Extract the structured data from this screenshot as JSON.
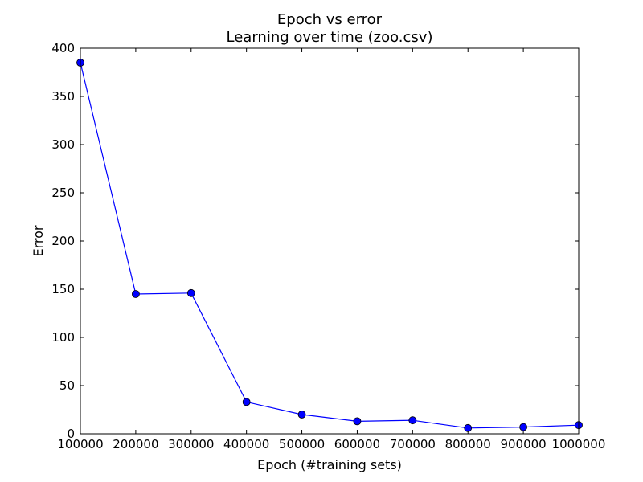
{
  "chart_data": {
    "type": "line",
    "title": "Epoch vs error",
    "subtitle": "Learning over time (zoo.csv)",
    "xlabel": "Epoch (#training sets)",
    "ylabel": "Error",
    "xlim": [
      100000,
      1000000
    ],
    "ylim": [
      0,
      400
    ],
    "x_ticks": [
      100000,
      200000,
      300000,
      400000,
      500000,
      600000,
      700000,
      800000,
      900000,
      1000000
    ],
    "x_tick_labels": [
      "100000",
      "200000",
      "300000",
      "400000",
      "500000",
      "600000",
      "700000",
      "800000",
      "900000",
      "1000000"
    ],
    "y_ticks": [
      0,
      50,
      100,
      150,
      200,
      250,
      300,
      350,
      400
    ],
    "y_tick_labels": [
      "0",
      "50",
      "100",
      "150",
      "200",
      "250",
      "300",
      "350",
      "400"
    ],
    "grid": false,
    "line_color": "#0000ff",
    "marker": "circle",
    "x": [
      100000,
      200000,
      300000,
      400000,
      500000,
      600000,
      700000,
      800000,
      900000,
      1000000
    ],
    "y": [
      385,
      145,
      146,
      33,
      20,
      13,
      14,
      6,
      7,
      9
    ]
  }
}
